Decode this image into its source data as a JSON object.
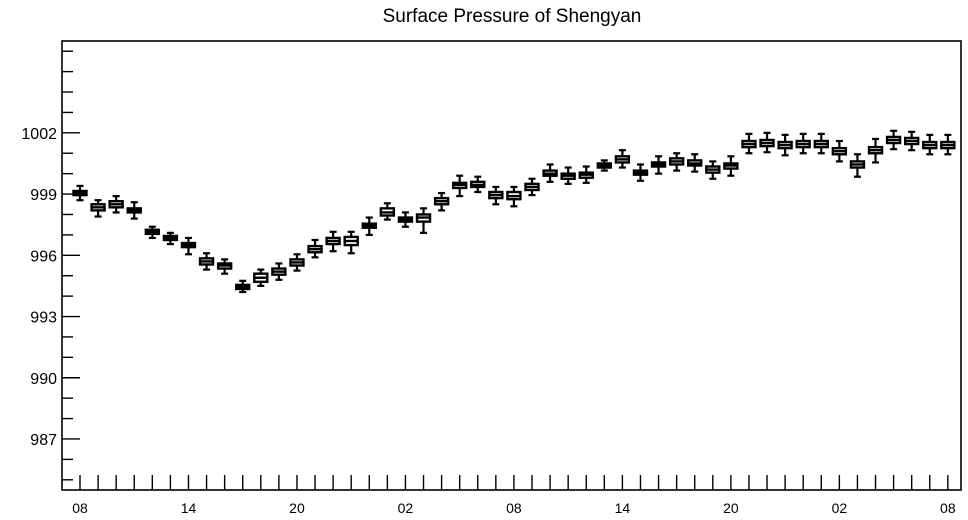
{
  "chart_data": {
    "type": "box",
    "title": "Surface Pressure of Shengyan",
    "xlabel": "",
    "ylabel": "",
    "ylim": [
      984.5,
      1006.5
    ],
    "y_major_ticks": [
      987,
      990,
      993,
      996,
      999,
      1002
    ],
    "y_tick_labels": [
      "987",
      "990",
      "993",
      "996",
      "999",
      "1002"
    ],
    "y_minor_step": 1,
    "x_tick_count": 49,
    "x_major_labels": [
      {
        "index": 0,
        "label": "08"
      },
      {
        "index": 6,
        "label": "14"
      },
      {
        "index": 12,
        "label": "20"
      },
      {
        "index": 18,
        "label": "02"
      },
      {
        "index": 24,
        "label": "08"
      },
      {
        "index": 30,
        "label": "14"
      },
      {
        "index": 36,
        "label": "20"
      },
      {
        "index": 42,
        "label": "02"
      },
      {
        "index": 48,
        "label": "08"
      }
    ],
    "box_color": "#000000",
    "series": [
      {
        "values": [
          {
            "x": 0,
            "low": 998.7,
            "q1": 998.95,
            "median": 999.05,
            "q3": 999.15,
            "high": 999.4
          },
          {
            "x": 1,
            "low": 997.9,
            "q1": 998.2,
            "median": 998.35,
            "q3": 998.5,
            "high": 998.7
          },
          {
            "x": 2,
            "low": 998.1,
            "q1": 998.35,
            "median": 998.5,
            "q3": 998.65,
            "high": 998.9
          },
          {
            "x": 3,
            "low": 997.8,
            "q1": 998.1,
            "median": 998.2,
            "q3": 998.3,
            "high": 998.6
          },
          {
            "x": 4,
            "low": 996.85,
            "q1": 997.05,
            "median": 997.15,
            "q3": 997.25,
            "high": 997.4
          },
          {
            "x": 5,
            "low": 996.55,
            "q1": 996.75,
            "median": 996.85,
            "q3": 996.95,
            "high": 997.1
          },
          {
            "x": 6,
            "low": 996.05,
            "q1": 996.4,
            "median": 996.5,
            "q3": 996.6,
            "high": 996.85
          },
          {
            "x": 7,
            "low": 995.3,
            "q1": 995.55,
            "median": 995.7,
            "q3": 995.85,
            "high": 996.1
          },
          {
            "x": 8,
            "low": 995.1,
            "q1": 995.35,
            "median": 995.5,
            "q3": 995.6,
            "high": 995.8
          },
          {
            "x": 9,
            "low": 994.2,
            "q1": 994.35,
            "median": 994.45,
            "q3": 994.55,
            "high": 994.75
          },
          {
            "x": 10,
            "low": 994.5,
            "q1": 994.7,
            "median": 994.9,
            "q3": 995.1,
            "high": 995.3
          },
          {
            "x": 11,
            "low": 994.8,
            "q1": 995.05,
            "median": 995.2,
            "q3": 995.35,
            "high": 995.6
          },
          {
            "x": 12,
            "low": 995.25,
            "q1": 995.5,
            "median": 995.65,
            "q3": 995.8,
            "high": 996.05
          },
          {
            "x": 13,
            "low": 995.9,
            "q1": 996.15,
            "median": 996.3,
            "q3": 996.45,
            "high": 996.75
          },
          {
            "x": 14,
            "low": 996.2,
            "q1": 996.55,
            "median": 996.7,
            "q3": 996.85,
            "high": 997.15
          },
          {
            "x": 15,
            "low": 996.1,
            "q1": 996.5,
            "median": 996.7,
            "q3": 996.9,
            "high": 997.15
          },
          {
            "x": 16,
            "low": 997.0,
            "q1": 997.35,
            "median": 997.45,
            "q3": 997.55,
            "high": 997.85
          },
          {
            "x": 17,
            "low": 997.75,
            "q1": 997.95,
            "median": 998.1,
            "q3": 998.3,
            "high": 998.55
          },
          {
            "x": 18,
            "low": 997.4,
            "q1": 997.65,
            "median": 997.75,
            "q3": 997.85,
            "high": 998.1
          },
          {
            "x": 19,
            "low": 997.1,
            "q1": 997.65,
            "median": 997.85,
            "q3": 998.0,
            "high": 998.3
          },
          {
            "x": 20,
            "low": 998.2,
            "q1": 998.5,
            "median": 998.65,
            "q3": 998.8,
            "high": 999.05
          },
          {
            "x": 21,
            "low": 998.9,
            "q1": 999.3,
            "median": 999.45,
            "q3": 999.55,
            "high": 999.9
          },
          {
            "x": 22,
            "low": 999.1,
            "q1": 999.35,
            "median": 999.45,
            "q3": 999.6,
            "high": 999.85
          },
          {
            "x": 23,
            "low": 998.5,
            "q1": 998.8,
            "median": 998.95,
            "q3": 999.1,
            "high": 999.35
          },
          {
            "x": 24,
            "low": 998.4,
            "q1": 998.75,
            "median": 998.9,
            "q3": 999.1,
            "high": 999.35
          },
          {
            "x": 25,
            "low": 998.95,
            "q1": 999.2,
            "median": 999.35,
            "q3": 999.5,
            "high": 999.75
          },
          {
            "x": 26,
            "low": 999.6,
            "q1": 999.9,
            "median": 1000.0,
            "q3": 1000.15,
            "high": 1000.45
          },
          {
            "x": 27,
            "low": 999.5,
            "q1": 999.75,
            "median": 999.9,
            "q3": 1000.0,
            "high": 1000.3
          },
          {
            "x": 28,
            "low": 999.55,
            "q1": 999.8,
            "median": 999.95,
            "q3": 1000.05,
            "high": 1000.35
          },
          {
            "x": 29,
            "low": 1000.15,
            "q1": 1000.3,
            "median": 1000.4,
            "q3": 1000.5,
            "high": 1000.65
          },
          {
            "x": 30,
            "low": 1000.3,
            "q1": 1000.55,
            "median": 1000.7,
            "q3": 1000.85,
            "high": 1001.15
          },
          {
            "x": 31,
            "low": 999.65,
            "q1": 999.95,
            "median": 1000.05,
            "q3": 1000.15,
            "high": 1000.45
          },
          {
            "x": 32,
            "low": 1000.0,
            "q1": 1000.35,
            "median": 1000.45,
            "q3": 1000.55,
            "high": 1000.85
          },
          {
            "x": 33,
            "low": 1000.15,
            "q1": 1000.45,
            "median": 1000.6,
            "q3": 1000.75,
            "high": 1001.0
          },
          {
            "x": 34,
            "low": 1000.1,
            "q1": 1000.4,
            "median": 1000.5,
            "q3": 1000.65,
            "high": 1000.95
          },
          {
            "x": 35,
            "low": 999.75,
            "q1": 1000.05,
            "median": 1000.2,
            "q3": 1000.35,
            "high": 1000.6
          },
          {
            "x": 36,
            "low": 999.9,
            "q1": 1000.25,
            "median": 1000.4,
            "q3": 1000.5,
            "high": 1000.85
          },
          {
            "x": 37,
            "low": 1001.0,
            "q1": 1001.3,
            "median": 1001.45,
            "q3": 1001.6,
            "high": 1001.95
          },
          {
            "x": 38,
            "low": 1001.05,
            "q1": 1001.35,
            "median": 1001.5,
            "q3": 1001.65,
            "high": 1002.0
          },
          {
            "x": 39,
            "low": 1000.9,
            "q1": 1001.25,
            "median": 1001.4,
            "q3": 1001.55,
            "high": 1001.9
          },
          {
            "x": 40,
            "low": 1001.0,
            "q1": 1001.3,
            "median": 1001.45,
            "q3": 1001.6,
            "high": 1001.95
          },
          {
            "x": 41,
            "low": 1001.0,
            "q1": 1001.3,
            "median": 1001.45,
            "q3": 1001.6,
            "high": 1001.95
          },
          {
            "x": 42,
            "low": 1000.6,
            "q1": 1000.95,
            "median": 1001.1,
            "q3": 1001.25,
            "high": 1001.6
          },
          {
            "x": 43,
            "low": 999.85,
            "q1": 1000.3,
            "median": 1000.45,
            "q3": 1000.6,
            "high": 1000.95
          },
          {
            "x": 44,
            "low": 1000.55,
            "q1": 1001.0,
            "median": 1001.15,
            "q3": 1001.3,
            "high": 1001.7
          },
          {
            "x": 45,
            "low": 1001.2,
            "q1": 1001.5,
            "median": 1001.65,
            "q3": 1001.8,
            "high": 1002.1
          },
          {
            "x": 46,
            "low": 1001.15,
            "q1": 1001.45,
            "median": 1001.6,
            "q3": 1001.75,
            "high": 1002.05
          },
          {
            "x": 47,
            "low": 1000.95,
            "q1": 1001.25,
            "median": 1001.4,
            "q3": 1001.55,
            "high": 1001.9
          },
          {
            "x": 48,
            "low": 1000.95,
            "q1": 1001.25,
            "median": 1001.4,
            "q3": 1001.55,
            "high": 1001.9
          }
        ]
      }
    ]
  }
}
